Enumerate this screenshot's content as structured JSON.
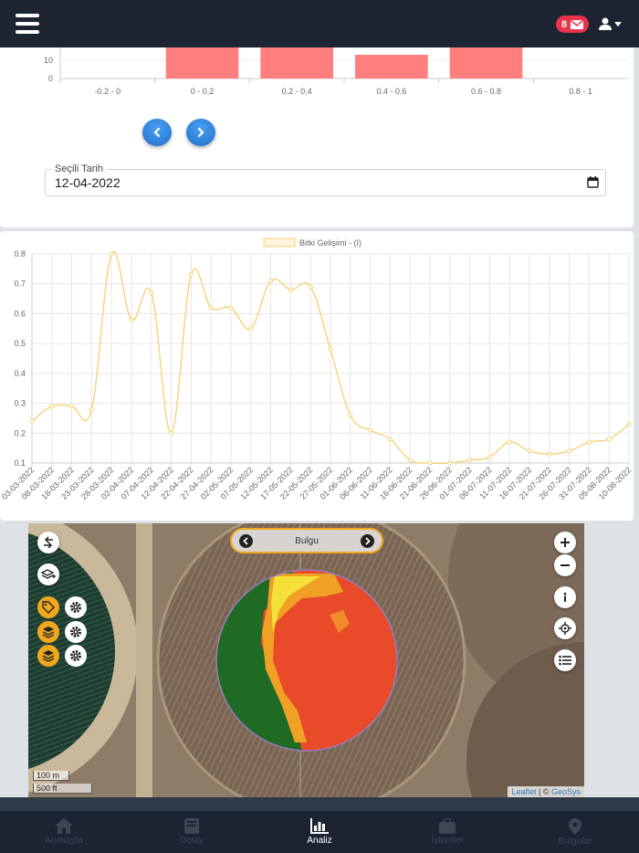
{
  "header": {
    "mail_count": "8",
    "icons": [
      "hamburger-menu-icon",
      "mail-icon",
      "user-icon",
      "caret-down-icon"
    ]
  },
  "histogram": {
    "categories": [
      "-0.2 - 0",
      "0 - 0.2",
      "0.2 - 0.4",
      "0.4 - 0.6",
      "0.6 - 0.8",
      "0.8 - 1"
    ],
    "values": [
      0,
      18,
      18,
      13,
      18,
      0
    ],
    "y_ticks": [
      "10",
      "0"
    ],
    "ylim": [
      0,
      15
    ],
    "bar_color": "#ff7f7f"
  },
  "date_picker": {
    "legend": "Seçili Tarih",
    "value": "12-04-2022"
  },
  "chart_data": {
    "type": "line",
    "series": [
      {
        "name": "Bitki Gelişimi - (I)",
        "color": "#f6d27a",
        "values": [
          0.24,
          0.29,
          0.29,
          0.28,
          0.8,
          0.58,
          0.67,
          0.2,
          0.73,
          0.62,
          0.62,
          0.55,
          0.71,
          0.68,
          0.69,
          0.48,
          0.26,
          0.21,
          0.18,
          0.11,
          0.1,
          0.1,
          0.11,
          0.12,
          0.17,
          0.14,
          0.13,
          0.14,
          0.17,
          0.18,
          0.23
        ]
      }
    ],
    "x": [
      "03-03-2022",
      "08-03-2022",
      "18-03-2022",
      "23-03-2022",
      "28-03-2022",
      "02-04-2022",
      "07-04-2022",
      "12-04-2022",
      "22-04-2022",
      "27-04-2022",
      "02-05-2022",
      "07-05-2022",
      "12-05-2022",
      "17-05-2022",
      "22-05-2022",
      "27-05-2022",
      "01-06-2022",
      "06-06-2022",
      "11-06-2022",
      "16-06-2022",
      "21-06-2022",
      "26-06-2022",
      "01-07-2022",
      "06-07-2022",
      "11-07-2022",
      "16-07-2022",
      "21-07-2022",
      "26-07-2022",
      "31-07-2022",
      "05-08-2022",
      "10-08-2022"
    ],
    "y_ticks": [
      "0.8",
      "0.7",
      "0.6",
      "0.5",
      "0.4",
      "0.3",
      "0.2",
      "0.1"
    ],
    "ylim": [
      0.1,
      0.8
    ],
    "grid": true,
    "legend_position": "top"
  },
  "map": {
    "bulgu_label": "Bulgu",
    "scale_metric": "100 m",
    "scale_imperial": "500 ft",
    "attribution_leaflet": "Leaflet",
    "attribution_sep": " | © ",
    "attribution_geosys": "GeoSys",
    "accent_color": "#f2a81d"
  },
  "bottom_nav": {
    "items": [
      {
        "label": "Anasayfa",
        "icon": "home-icon"
      },
      {
        "label": "Detay",
        "icon": "book-icon"
      },
      {
        "label": "Analiz",
        "icon": "bar-chart-icon"
      },
      {
        "label": "İşlemler",
        "icon": "briefcase-icon"
      },
      {
        "label": "Bulgular",
        "icon": "map-marker-icon"
      }
    ],
    "active_index": 2
  }
}
